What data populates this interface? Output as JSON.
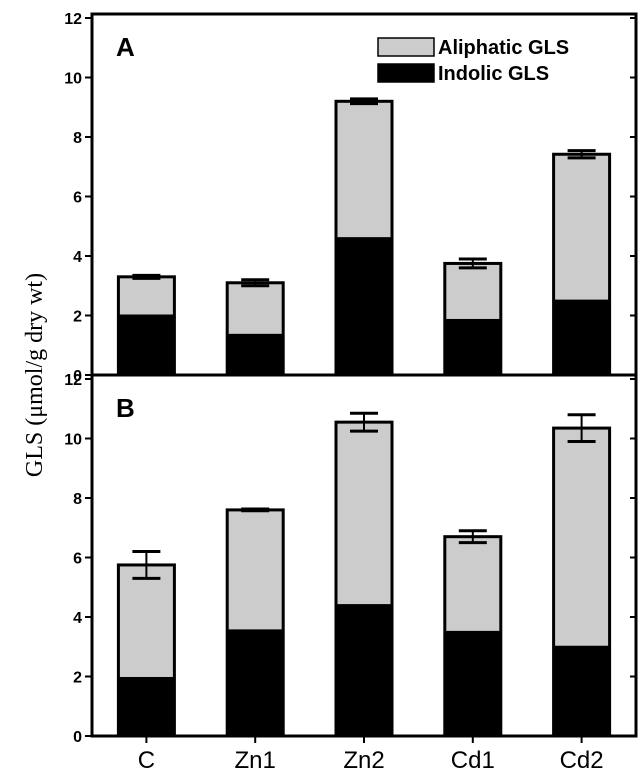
{
  "chart_data": {
    "type": "bar",
    "stacked": true,
    "ylabel": "GLS (μmol/g dry wt)",
    "xlabel": "",
    "categories": [
      "C",
      "Zn1",
      "Zn2",
      "Cd1",
      "Cd2"
    ],
    "legend": {
      "placement": "top-right",
      "entries": [
        {
          "name": "Aliphatic GLS",
          "color": "#cccccc"
        },
        {
          "name": "Indolic GLS",
          "color": "#000000"
        }
      ]
    },
    "panels": [
      {
        "label": "A",
        "ylim": [
          0,
          12
        ],
        "yticks": [
          "0",
          "2",
          "4",
          "6",
          "8",
          "10",
          "12"
        ],
        "series": [
          {
            "name": "Indolic GLS",
            "values": [
              2.0,
              1.35,
              4.6,
              1.85,
              2.5
            ]
          },
          {
            "name": "Aliphatic GLS",
            "values": [
              1.3,
              1.75,
              4.6,
              1.9,
              4.92
            ]
          }
        ],
        "totals": [
          3.3,
          3.1,
          9.2,
          3.75,
          7.42
        ],
        "errors": [
          0.05,
          0.1,
          0.08,
          0.15,
          0.12
        ]
      },
      {
        "label": "B",
        "ylim": [
          0,
          12
        ],
        "yticks": [
          "0",
          "2",
          "4",
          "6",
          "8",
          "10",
          "12"
        ],
        "series": [
          {
            "name": "Indolic GLS",
            "values": [
              1.95,
              3.55,
              4.4,
              3.5,
              3.0
            ]
          },
          {
            "name": "Aliphatic GLS",
            "values": [
              3.8,
              4.05,
              6.15,
              3.2,
              7.35
            ]
          }
        ],
        "totals": [
          5.75,
          7.6,
          10.55,
          6.7,
          10.35
        ],
        "errors": [
          0.45,
          0.03,
          0.3,
          0.2,
          0.45
        ]
      }
    ]
  }
}
